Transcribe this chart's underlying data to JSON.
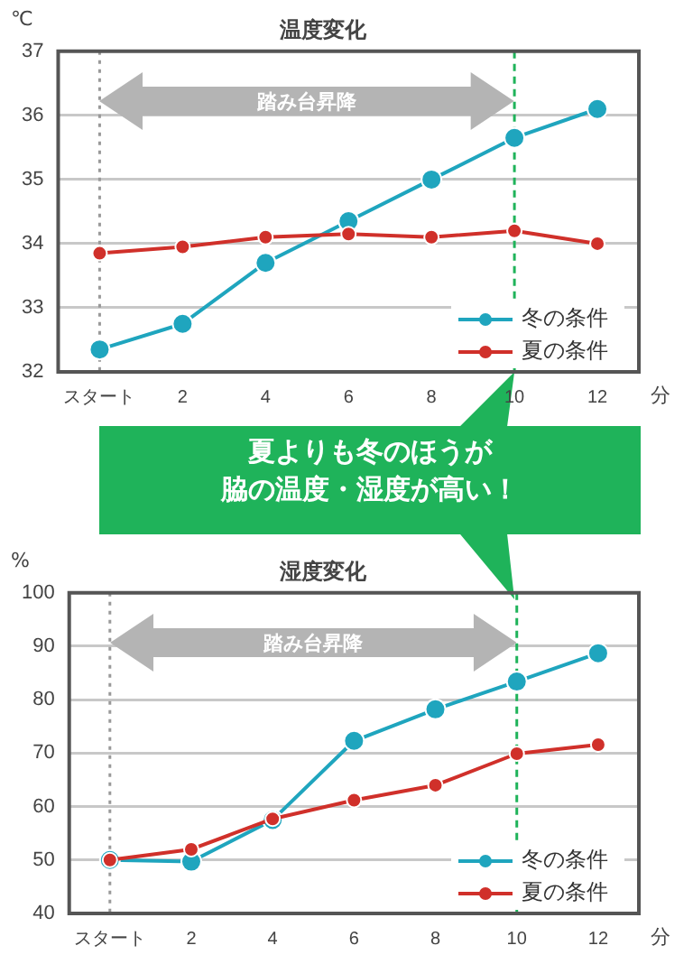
{
  "chart_data": [
    {
      "type": "line",
      "title": "温度変化",
      "xlabel": "分",
      "ylabel": "℃",
      "categories": [
        "スタート",
        "2",
        "4",
        "6",
        "8",
        "10",
        "12"
      ],
      "series": [
        {
          "name": "冬の条件",
          "color": "#1fa5be",
          "values": [
            32.35,
            32.75,
            33.7,
            34.35,
            35.0,
            35.65,
            36.1
          ]
        },
        {
          "name": "夏の条件",
          "color": "#d0302a",
          "values": [
            33.85,
            33.95,
            34.1,
            34.15,
            34.1,
            34.2,
            34.0
          ]
        }
      ],
      "ylim": [
        32,
        37
      ],
      "yticks": [
        32,
        33,
        34,
        35,
        36,
        37
      ],
      "grid": "y",
      "legend": "bottom right",
      "marker": "circle",
      "line_style": "solid",
      "ref_lines": [
        {
          "axis": "x",
          "value": "スタート",
          "color": "#999999",
          "line_style": "dotted"
        },
        {
          "axis": "x",
          "value": "10",
          "color": "#1fb35a",
          "line_style": "dashed"
        }
      ],
      "annotations": [
        "踏み台昇降",
        "夏よりも冬のほうが",
        "脇の温度・湿度が高い！"
      ]
    },
    {
      "type": "line",
      "title": "湿度変化",
      "xlabel": "分",
      "ylabel": "%",
      "categories": [
        "スタート",
        "2",
        "4",
        "6",
        "8",
        "10",
        "12"
      ],
      "series": [
        {
          "name": "冬の条件",
          "color": "#1fa5be",
          "values": [
            50,
            49.7,
            57.5,
            72.3,
            78.2,
            83.4,
            88.7
          ]
        },
        {
          "name": "夏の条件",
          "color": "#d0302a",
          "values": [
            50,
            52,
            57.7,
            61.2,
            64,
            69.9,
            71.6
          ]
        }
      ],
      "ylim": [
        40,
        100
      ],
      "yticks": [
        40,
        50,
        60,
        70,
        80,
        90,
        100
      ],
      "grid": "y",
      "legend": "bottom right",
      "marker": "circle",
      "line_style": "solid",
      "ref_lines": [
        {
          "axis": "x",
          "value": "スタート",
          "color": "#999999",
          "line_style": "dotted"
        },
        {
          "axis": "x",
          "value": "10",
          "color": "#1fb35a",
          "line_style": "dashed"
        }
      ],
      "annotations": [
        "踏み台昇降"
      ]
    }
  ]
}
